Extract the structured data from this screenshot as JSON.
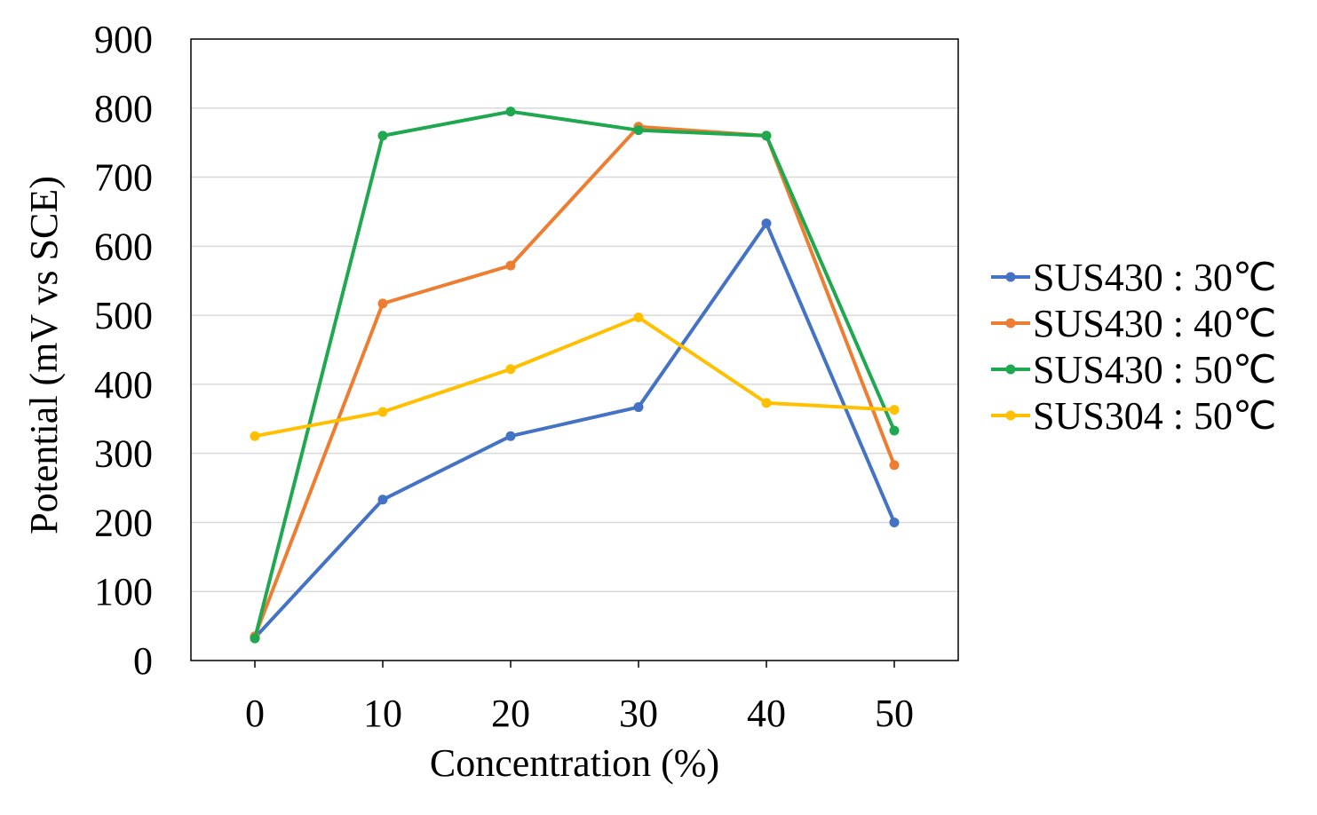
{
  "chart_data": {
    "type": "line",
    "title": "",
    "xlabel": "Concentration (%)",
    "ylabel": "Potential (mV vs SCE)",
    "x": [
      0,
      10,
      20,
      30,
      40,
      50
    ],
    "xticks": [
      "0",
      "10",
      "20",
      "30",
      "40",
      "50"
    ],
    "ylim": [
      0,
      900
    ],
    "yticks": [
      "0",
      "100",
      "200",
      "300",
      "400",
      "500",
      "600",
      "700",
      "800",
      "900"
    ],
    "grid": "horizontal",
    "legend": "right",
    "series": [
      {
        "name": "SUS430 : 30℃",
        "color": "#4472C4",
        "values": [
          33,
          233,
          325,
          367,
          633,
          200
        ]
      },
      {
        "name": "SUS430 : 40℃",
        "color": "#ED7D31",
        "values": [
          35,
          517,
          572,
          773,
          760,
          283
        ]
      },
      {
        "name": "SUS430 : 50℃",
        "color": "#1FA84F",
        "values": [
          32,
          760,
          795,
          768,
          760,
          333
        ]
      },
      {
        "name": "SUS304 : 50℃",
        "color": "#FFC000",
        "values": [
          325,
          360,
          422,
          497,
          373,
          363
        ]
      }
    ]
  }
}
